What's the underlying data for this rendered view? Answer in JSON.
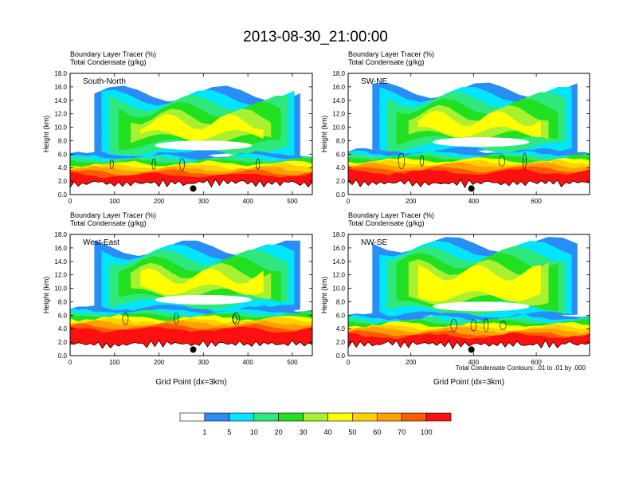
{
  "title": "2013-08-30_21:00:00",
  "chart_data": [
    {
      "type": "heatmap",
      "panel": "South-North",
      "header_lines": [
        "Boundary Layer Tracer   (%)",
        "Total Condensate   (g/kg)"
      ],
      "ylabel": "Height (km)",
      "xlabel": "",
      "ylim": [
        0,
        18
      ],
      "xlim": [
        0,
        545
      ],
      "xticks": [
        0,
        100,
        200,
        300,
        400,
        500
      ],
      "yticks": [
        0.0,
        2.0,
        4.0,
        6.0,
        8.0,
        10.0,
        12.0,
        14.0,
        16.0,
        18.0
      ],
      "marker_x": 277,
      "cloud_base_km": 5.0,
      "cloud_top_km": 15.0
    },
    {
      "type": "heatmap",
      "panel": "SW-NE",
      "header_lines": [
        "Boundary Layer Tracer   (%)",
        "Total Condensate   (g/kg)"
      ],
      "ylabel": "Height (km)",
      "xlabel": "",
      "ylim": [
        0,
        18
      ],
      "xlim": [
        0,
        770
      ],
      "xticks": [
        0,
        200,
        400,
        600
      ],
      "yticks": [
        0.0,
        2.0,
        4.0,
        6.0,
        8.0,
        10.0,
        12.0,
        14.0,
        16.0,
        18.0
      ],
      "marker_x": 393,
      "cloud_base_km": 5.5,
      "cloud_top_km": 15.5
    },
    {
      "type": "heatmap",
      "panel": "West-East",
      "header_lines": [
        "Boundary Layer Tracer   (%)",
        "Total Condensate   (g/kg)"
      ],
      "ylabel": "Height (km)",
      "xlabel": "Grid Point (dx=3km)",
      "ylim": [
        0,
        18
      ],
      "xlim": [
        0,
        545
      ],
      "xticks": [
        0,
        100,
        200,
        300,
        400,
        500
      ],
      "yticks": [
        0.0,
        2.0,
        4.0,
        6.0,
        8.0,
        10.0,
        12.0,
        14.0,
        16.0,
        18.0
      ],
      "marker_x": 277,
      "cloud_base_km": 6.0,
      "cloud_top_km": 16.0
    },
    {
      "type": "heatmap",
      "panel": "NW-SE",
      "header_lines": [
        "Boundary Layer Tracer   (%)",
        "Total Condensate   (g/kg)"
      ],
      "ylabel": "Height (km)",
      "xlabel": "Grid Point (dx=3km)",
      "ylim": [
        0,
        18
      ],
      "xlim": [
        0,
        770
      ],
      "xticks": [
        0,
        200,
        400,
        600
      ],
      "yticks": [
        0.0,
        2.0,
        4.0,
        6.0,
        8.0,
        10.0,
        12.0,
        14.0,
        16.0,
        18.0
      ],
      "marker_x": 393,
      "cloud_base_km": 5.0,
      "cloud_top_km": 16.5
    }
  ],
  "footnote": "Total Condensate Contours: .01 to .01 by .000",
  "colorbar": {
    "colors": [
      "#ffffff",
      "#2a8cf5",
      "#00e5ff",
      "#2ee87e",
      "#20e020",
      "#a8f030",
      "#ffff00",
      "#ffd000",
      "#ffa000",
      "#ff5a00",
      "#ff1010"
    ],
    "labels": [
      "1",
      "5",
      "10",
      "20",
      "30",
      "40",
      "50",
      "60",
      "70",
      "100"
    ]
  }
}
